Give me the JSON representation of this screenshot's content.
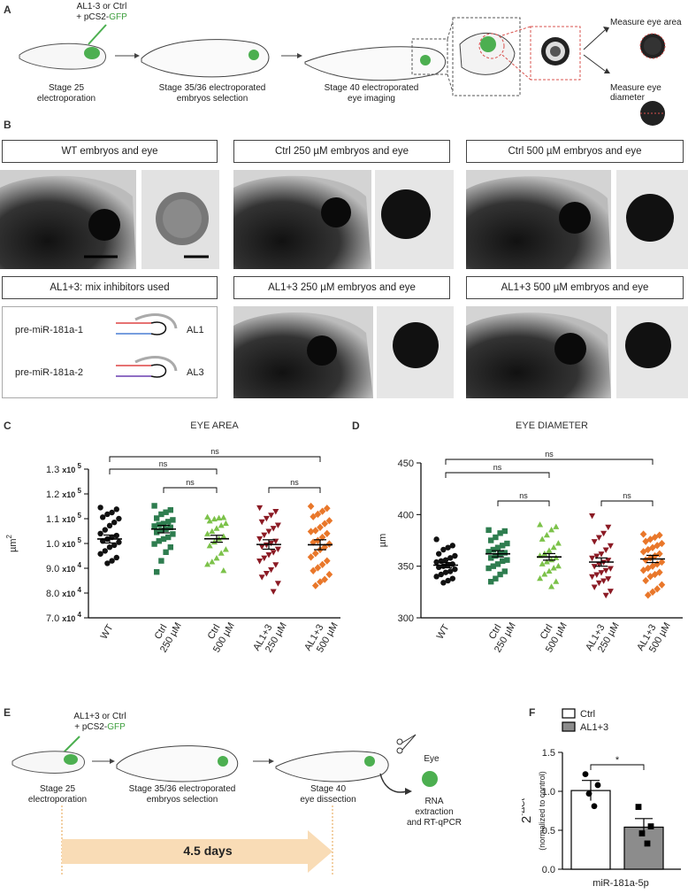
{
  "panel_labels": {
    "a": "A",
    "b": "B",
    "c": "C",
    "d": "D",
    "e": "E",
    "f": "F"
  },
  "panelA": {
    "injection_line1": "AL1-3 or Ctrl",
    "injection_line2_prefix": "+ pCS2-",
    "injection_line2_gfp": "GFP",
    "stage1_line1": "Stage 25",
    "stage1_line2": "electroporation",
    "stage2_line1": "Stage 35/36 electroporated",
    "stage2_line2": "embryos selection",
    "stage3_line1": "Stage 40 electroporated",
    "stage3_line2": "eye imaging",
    "measure_area": "Measure eye area",
    "measure_diameter": "Measure eye diameter",
    "colors": {
      "gfp": "#4caf50",
      "dashed_red": "#d9534f"
    }
  },
  "panelB": {
    "titles": [
      "WT embryos and eye",
      "Ctrl 250 µM embryos and eye",
      "Ctrl 500 µM embryos and eye",
      "AL1+3: mix inhibitors used",
      "AL1+3 250 µM embryos and eye",
      "AL1+3 500 µM embryos and eye"
    ],
    "inhibitors": [
      {
        "precursor": "pre-miR-181a-1",
        "name": "AL1"
      },
      {
        "precursor": "pre-miR-181a-2",
        "name": "AL3"
      }
    ]
  },
  "chart_data": [
    {
      "type": "scatter",
      "panel": "C",
      "title": "EYE AREA",
      "ylabel": "µm",
      "ylabel_sup": "2",
      "ylim": [
        70000,
        130000
      ],
      "yticks": [
        {
          "value": 70000,
          "label": "7.0",
          "exp": "4"
        },
        {
          "value": 80000,
          "label": "8.0",
          "exp": "4"
        },
        {
          "value": 90000,
          "label": "9.0",
          "exp": "4"
        },
        {
          "value": 100000,
          "label": "1.0",
          "exp": "5"
        },
        {
          "value": 110000,
          "label": "1.1",
          "exp": "5"
        },
        {
          "value": 120000,
          "label": "1.2",
          "exp": "5"
        },
        {
          "value": 130000,
          "label": "1.3",
          "exp": "5"
        }
      ],
      "tick_mult": "x10",
      "categories": [
        [
          "WT"
        ],
        [
          "Ctrl",
          "250 µM"
        ],
        [
          "Ctrl",
          "500 µM"
        ],
        [
          "AL1+3",
          "250 µM"
        ],
        [
          "AL1+3",
          "500 µM"
        ]
      ],
      "series": [
        {
          "color": "#111111",
          "marker": "circle",
          "mean": 101800,
          "sem": 1600,
          "values": [
            114500,
            113800,
            112500,
            111800,
            110600,
            110000,
            108500,
            107200,
            105500,
            104000,
            103200,
            102500,
            101800,
            101000,
            100500,
            99300,
            98500,
            97000,
            95800,
            94300,
            93000,
            92000
          ]
        },
        {
          "color": "#2e7d4f",
          "marker": "square",
          "mean": 105800,
          "sem": 1500,
          "values": [
            115200,
            113500,
            112600,
            111800,
            110200,
            109500,
            108800,
            108000,
            107600,
            107000,
            106500,
            105800,
            105200,
            104500,
            103800,
            102500,
            101800,
            101000,
            99800,
            98500,
            96500,
            93000,
            88500
          ]
        },
        {
          "color": "#7cc24a",
          "marker": "triangle",
          "mean": 101900,
          "sem": 1400,
          "values": [
            110600,
            110400,
            110200,
            109800,
            109000,
            108000,
            107200,
            106000,
            104800,
            103800,
            102800,
            101800,
            100500,
            99000,
            97500,
            96000,
            94000,
            92500,
            91500,
            89000
          ]
        },
        {
          "color": "#8b1a24",
          "marker": "triangle-down",
          "mean": 99600,
          "sem": 1900,
          "values": [
            114500,
            113000,
            111500,
            110200,
            108800,
            107500,
            106200,
            105000,
            103500,
            102000,
            101000,
            100200,
            99500,
            98800,
            97800,
            96500,
            95500,
            94200,
            93000,
            91500,
            89500,
            88000,
            86500,
            84000,
            80700
          ]
        },
        {
          "color": "#e9772a",
          "marker": "diamond",
          "mean": 99500,
          "sem": 2000,
          "values": [
            115000,
            114200,
            113000,
            111800,
            110800,
            109200,
            108000,
            106500,
            105200,
            104800,
            104000,
            102500,
            101200,
            100500,
            99800,
            98500,
            97500,
            96000,
            94500,
            93000,
            91500,
            90200,
            89000,
            87500,
            85500,
            84500,
            83000
          ]
        }
      ],
      "comparisons": [
        {
          "from": 0,
          "to": 2,
          "label": "ns"
        },
        {
          "from": 0,
          "to": 4,
          "label": "ns"
        },
        {
          "from": 1,
          "to": 2,
          "label": "ns"
        },
        {
          "from": 3,
          "to": 4,
          "label": "ns"
        }
      ]
    },
    {
      "type": "scatter",
      "panel": "D",
      "title": "EYE DIAMETER",
      "ylabel": "µm",
      "ylim": [
        300,
        450
      ],
      "yticks": [
        {
          "value": 300,
          "label": "300"
        },
        {
          "value": 350,
          "label": "350"
        },
        {
          "value": 400,
          "label": "400"
        },
        {
          "value": 450,
          "label": "450"
        }
      ],
      "categories": [
        [
          "WT"
        ],
        [
          "Ctrl",
          "250 µM"
        ],
        [
          "Ctrl",
          "500 µM"
        ],
        [
          "AL1+3",
          "250 µM"
        ],
        [
          "AL1+3",
          "500 µM"
        ]
      ],
      "series": [
        {
          "color": "#111111",
          "marker": "circle",
          "mean": 351,
          "sem": 2.5,
          "values": [
            376,
            370,
            368,
            366,
            362,
            360,
            358,
            356,
            355,
            354,
            352,
            351,
            350,
            349,
            347,
            345,
            344,
            342,
            340,
            338,
            336,
            334
          ]
        },
        {
          "color": "#2e7d4f",
          "marker": "square",
          "mean": 362,
          "sem": 3,
          "values": [
            385,
            384,
            382,
            378,
            375,
            372,
            370,
            368,
            366,
            364,
            363,
            362,
            360,
            358,
            356,
            355,
            352,
            350,
            348,
            345,
            342,
            338,
            335
          ]
        },
        {
          "color": "#7cc24a",
          "marker": "triangle",
          "mean": 359,
          "sem": 3.2,
          "values": [
            390,
            388,
            385,
            380,
            376,
            372,
            368,
            365,
            362,
            360,
            358,
            356,
            354,
            352,
            350,
            348,
            345,
            342,
            338,
            335,
            330
          ]
        },
        {
          "color": "#8b1a24",
          "marker": "triangle-down",
          "mean": 354,
          "sem": 4,
          "values": [
            399,
            388,
            382,
            378,
            374,
            370,
            366,
            362,
            360,
            358,
            356,
            354,
            352,
            350,
            348,
            346,
            344,
            342,
            340,
            338,
            336,
            334,
            330,
            326,
            322
          ]
        },
        {
          "color": "#e9772a",
          "marker": "diamond",
          "mean": 357,
          "sem": 3.5,
          "values": [
            381,
            380,
            378,
            376,
            374,
            372,
            370,
            368,
            366,
            364,
            362,
            360,
            358,
            356,
            354,
            352,
            350,
            348,
            346,
            344,
            342,
            340,
            336,
            332,
            328,
            325,
            322
          ]
        }
      ],
      "comparisons": [
        {
          "from": 0,
          "to": 2,
          "label": "ns"
        },
        {
          "from": 0,
          "to": 4,
          "label": "ns"
        },
        {
          "from": 1,
          "to": 2,
          "label": "ns"
        },
        {
          "from": 3,
          "to": 4,
          "label": "ns"
        }
      ]
    },
    {
      "type": "bar",
      "panel": "F",
      "ylabel_main": "2",
      "ylabel_sup": "-ΔCt",
      "ylabel_sub": "(normalized to control)",
      "xlabel": "miR-181a-5p",
      "ylim": [
        0,
        1.5
      ],
      "yticks": [
        0.0,
        0.5,
        1.0,
        1.5
      ],
      "categories": [
        "Ctrl",
        "AL1+3"
      ],
      "series": [
        {
          "name": "Ctrl",
          "value": 1.01,
          "sem": 0.13,
          "fill": "#ffffff",
          "marker": "circle",
          "points": [
            1.22,
            1.08,
            0.97,
            0.81
          ]
        },
        {
          "name": "AL1+3",
          "value": 0.54,
          "sem": 0.11,
          "fill": "#8c8c8c",
          "marker": "square",
          "points": [
            0.8,
            0.55,
            0.46,
            0.33
          ]
        }
      ],
      "comparisons": [
        {
          "from": 0,
          "to": 1,
          "label": "*"
        }
      ],
      "legend_placement": "top-left"
    }
  ],
  "panelE": {
    "injection_line1": "AL1+3 or Ctrl",
    "injection_line2_prefix": "+ pCS2-",
    "injection_line2_gfp": "GFP",
    "stage1_line1": "Stage 25",
    "stage1_line2": "electroporation",
    "stage2_line1": "Stage 35/36 electroporated",
    "stage2_line2": "embryos selection",
    "stage3_line1": "Stage 40",
    "stage3_line2": "eye dissection",
    "eye_label": "Eye",
    "rna_line1": "RNA",
    "rna_line2": "extraction",
    "rna_line3": "and RT-qPCR",
    "duration": "4.5 days",
    "colors": {
      "arrow": "#f9dcb6",
      "gfp": "#4caf50",
      "dotted": "#e6a14a"
    }
  }
}
